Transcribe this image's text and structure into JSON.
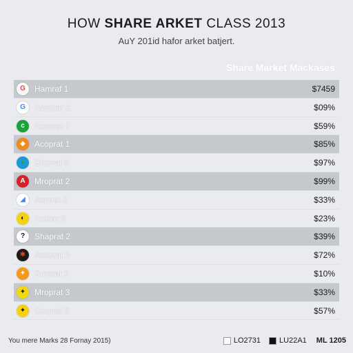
{
  "header": {
    "title_prefix": "HOW ",
    "title_bold": "SHARE ARKET",
    "title_suffix": " CLASS 2013",
    "subtitle": "AuY 201id hafor  arket batjert."
  },
  "table": {
    "header": "Share Market Mackases"
  },
  "chart_data": {
    "type": "table",
    "title": "HOW SHARE ARKET CLASS 2013",
    "subtitle": "AuY 201id hafor  arket batjert.",
    "columns": [
      "",
      "Share Market Mackases"
    ],
    "rows": [
      {
        "name": "Hamraf 1",
        "value": "$7459",
        "logo_color": "#ffffff",
        "logo_text": "G",
        "logo_text_color": "#ea4335"
      },
      {
        "name": "Acoprar 1",
        "value": "$09%",
        "logo_color": "#ffffff",
        "logo_text": "G",
        "logo_text_color": "#4285f4"
      },
      {
        "name": "Acoprat 1",
        "value": "$59%",
        "logo_color": "#1aa33a",
        "logo_text": "c",
        "logo_text_color": "#ffffff"
      },
      {
        "name": "Acoprat 1",
        "value": "$85%",
        "logo_color": "#f08a1c",
        "logo_text": "◆",
        "logo_text_color": "#ffffff"
      },
      {
        "name": "Sroprat 8",
        "value": "$97%",
        "logo_color": "#1a9ad6",
        "logo_text": "●",
        "logo_text_color": "#2e9f3a"
      },
      {
        "name": "Mroprat 2",
        "value": "$99%",
        "logo_color": "#d8202a",
        "logo_text": "A",
        "logo_text_color": "#ffffff"
      },
      {
        "name": "Acmrat 3",
        "value": "$33%",
        "logo_color": "#ffffff",
        "logo_text": "◢",
        "logo_text_color": "#4285f4"
      },
      {
        "name": "Acdrar 3",
        "value": "$23%",
        "logo_color": "#f5d20f",
        "logo_text": "◐",
        "logo_text_color": "#222222"
      },
      {
        "name": "Shaprat 2",
        "value": "$39%",
        "logo_color": "#ffffff",
        "logo_text": "?",
        "logo_text_color": "#111111"
      },
      {
        "name": "Acoprat 3",
        "value": "$72%",
        "logo_color": "#1a1a1a",
        "logo_text": "✱",
        "logo_text_color": "#e0402a"
      },
      {
        "name": "Sroprat 3",
        "value": "$10%",
        "logo_color": "#f39a1d",
        "logo_text": "✦",
        "logo_text_color": "#ffffff"
      },
      {
        "name": "Mroprat 3",
        "value": "$33%",
        "logo_color": "#f2d90a",
        "logo_text": "✦",
        "logo_text_color": "#222222"
      },
      {
        "name": "Croprat 5",
        "value": "$57%",
        "logo_color": "#f5d20f",
        "logo_text": "✦",
        "logo_text_color": "#222222"
      }
    ],
    "row_shading": [
      "shaded",
      "",
      "",
      "shaded",
      "",
      "shaded",
      "",
      "",
      "shaded",
      "",
      "",
      "shaded",
      ""
    ]
  },
  "footer": {
    "note": "You mere Marks 28 Fornay 2015)",
    "legend": [
      {
        "label": "LO2731",
        "color": "#ffffff"
      },
      {
        "label": "LU22A1",
        "color": "#111111"
      }
    ],
    "legend_extra": "ML 1205"
  }
}
